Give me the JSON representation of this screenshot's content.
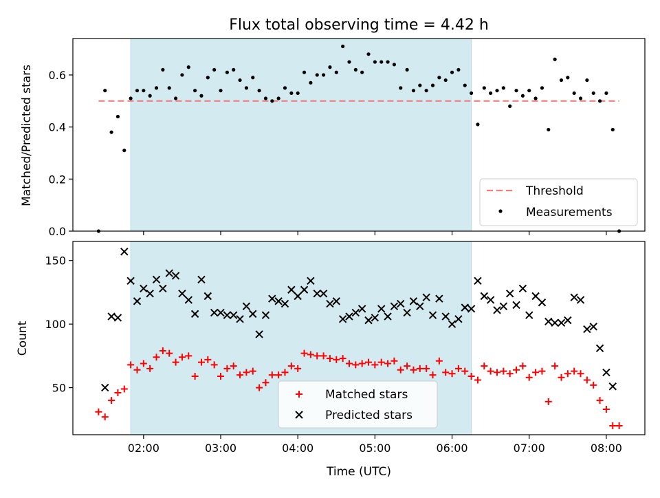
{
  "chart_data": [
    {
      "type": "scatter",
      "title": "Flux total observing time = 4.42 h",
      "xlabel": "",
      "ylabel": "Matched/Predicted stars",
      "ylim": [
        0,
        0.74
      ],
      "yticks": [
        "0.0",
        "0.2",
        "0.4",
        "0.6"
      ],
      "ytick_values": [
        0,
        0.2,
        0.4,
        0.6
      ],
      "xlim": [
        "01:05",
        "08:30"
      ],
      "highlight_span": {
        "start": "01:50",
        "end": "06:15",
        "color": "#d3eaf0"
      },
      "threshold": {
        "name": "Threshold",
        "value": 0.5,
        "x_range": [
          "01:25",
          "08:10"
        ],
        "color": "#f08080"
      },
      "legend": {
        "position": "lower-right",
        "entries": [
          "Threshold",
          "Measurements"
        ]
      },
      "series": [
        {
          "name": "Measurements",
          "marker": "dot",
          "color": "#000000",
          "points": [
            [
              "01:25",
              0.0
            ],
            [
              "01:30",
              0.54
            ],
            [
              "01:35",
              0.38
            ],
            [
              "01:40",
              0.44
            ],
            [
              "01:45",
              0.31
            ],
            [
              "01:50",
              0.51
            ],
            [
              "01:55",
              0.54
            ],
            [
              "02:00",
              0.54
            ],
            [
              "02:05",
              0.52
            ],
            [
              "02:10",
              0.55
            ],
            [
              "02:15",
              0.62
            ],
            [
              "02:20",
              0.55
            ],
            [
              "02:25",
              0.51
            ],
            [
              "02:30",
              0.6
            ],
            [
              "02:35",
              0.63
            ],
            [
              "02:40",
              0.54
            ],
            [
              "02:45",
              0.52
            ],
            [
              "02:50",
              0.59
            ],
            [
              "02:55",
              0.62
            ],
            [
              "03:00",
              0.54
            ],
            [
              "03:05",
              0.61
            ],
            [
              "03:10",
              0.62
            ],
            [
              "03:15",
              0.58
            ],
            [
              "03:20",
              0.55
            ],
            [
              "03:25",
              0.59
            ],
            [
              "03:30",
              0.54
            ],
            [
              "03:35",
              0.51
            ],
            [
              "03:40",
              0.5
            ],
            [
              "03:45",
              0.51
            ],
            [
              "03:50",
              0.55
            ],
            [
              "03:55",
              0.53
            ],
            [
              "04:00",
              0.53
            ],
            [
              "04:05",
              0.61
            ],
            [
              "04:10",
              0.57
            ],
            [
              "04:15",
              0.6
            ],
            [
              "04:20",
              0.6
            ],
            [
              "04:25",
              0.63
            ],
            [
              "04:30",
              0.61
            ],
            [
              "04:35",
              0.71
            ],
            [
              "04:40",
              0.65
            ],
            [
              "04:45",
              0.62
            ],
            [
              "04:50",
              0.61
            ],
            [
              "04:55",
              0.68
            ],
            [
              "05:00",
              0.65
            ],
            [
              "05:05",
              0.65
            ],
            [
              "05:10",
              0.65
            ],
            [
              "05:15",
              0.64
            ],
            [
              "05:20",
              0.55
            ],
            [
              "05:25",
              0.62
            ],
            [
              "05:30",
              0.54
            ],
            [
              "05:35",
              0.56
            ],
            [
              "05:40",
              0.54
            ],
            [
              "05:45",
              0.56
            ],
            [
              "05:50",
              0.59
            ],
            [
              "05:55",
              0.58
            ],
            [
              "06:00",
              0.61
            ],
            [
              "06:05",
              0.62
            ],
            [
              "06:10",
              0.56
            ],
            [
              "06:15",
              0.53
            ],
            [
              "06:20",
              0.41
            ],
            [
              "06:25",
              0.55
            ],
            [
              "06:30",
              0.53
            ],
            [
              "06:35",
              0.54
            ],
            [
              "06:40",
              0.55
            ],
            [
              "06:45",
              0.48
            ],
            [
              "06:50",
              0.54
            ],
            [
              "06:55",
              0.52
            ],
            [
              "07:00",
              0.54
            ],
            [
              "07:05",
              0.51
            ],
            [
              "07:10",
              0.55
            ],
            [
              "07:15",
              0.39
            ],
            [
              "07:20",
              0.66
            ],
            [
              "07:25",
              0.58
            ],
            [
              "07:30",
              0.59
            ],
            [
              "07:35",
              0.53
            ],
            [
              "07:40",
              0.51
            ],
            [
              "07:45",
              0.58
            ],
            [
              "07:50",
              0.53
            ],
            [
              "07:55",
              0.5
            ],
            [
              "08:00",
              0.53
            ],
            [
              "08:05",
              0.39
            ],
            [
              "08:10",
              0.0
            ]
          ]
        }
      ]
    },
    {
      "type": "scatter",
      "title": "",
      "xlabel": "Time (UTC)",
      "ylabel": "Count",
      "ylim": [
        13,
        165
      ],
      "yticks": [
        "50",
        "100",
        "150"
      ],
      "ytick_values": [
        50,
        100,
        150
      ],
      "xlim": [
        "01:05",
        "08:30"
      ],
      "xticks": [
        "02:00",
        "03:00",
        "04:00",
        "05:00",
        "06:00",
        "07:00",
        "08:00"
      ],
      "highlight_span": {
        "start": "01:50",
        "end": "06:15",
        "color": "#d3eaf0"
      },
      "legend": {
        "position": "lower-center",
        "entries": [
          "Matched stars",
          "Predicted stars"
        ]
      },
      "series": [
        {
          "name": "Matched stars",
          "marker": "plus",
          "color": "#ff0000",
          "points": [
            [
              "01:25",
              31
            ],
            [
              "01:30",
              27
            ],
            [
              "01:35",
              40
            ],
            [
              "01:40",
              46
            ],
            [
              "01:45",
              49
            ],
            [
              "01:50",
              68
            ],
            [
              "01:55",
              64
            ],
            [
              "02:00",
              69
            ],
            [
              "02:05",
              65
            ],
            [
              "02:10",
              74
            ],
            [
              "02:15",
              79
            ],
            [
              "02:20",
              77
            ],
            [
              "02:25",
              70
            ],
            [
              "02:30",
              74
            ],
            [
              "02:35",
              75
            ],
            [
              "02:40",
              59
            ],
            [
              "02:45",
              70
            ],
            [
              "02:50",
              72
            ],
            [
              "02:55",
              68
            ],
            [
              "03:00",
              59
            ],
            [
              "03:05",
              65
            ],
            [
              "03:10",
              67
            ],
            [
              "03:15",
              60
            ],
            [
              "03:20",
              62
            ],
            [
              "03:25",
              63
            ],
            [
              "03:30",
              50
            ],
            [
              "03:35",
              54
            ],
            [
              "03:40",
              60
            ],
            [
              "03:45",
              60
            ],
            [
              "03:50",
              62
            ],
            [
              "03:55",
              67
            ],
            [
              "04:00",
              65
            ],
            [
              "04:05",
              77
            ],
            [
              "04:10",
              76
            ],
            [
              "04:15",
              75
            ],
            [
              "04:20",
              75
            ],
            [
              "04:25",
              73
            ],
            [
              "04:30",
              72
            ],
            [
              "04:35",
              73
            ],
            [
              "04:40",
              69
            ],
            [
              "04:45",
              68
            ],
            [
              "04:50",
              69
            ],
            [
              "04:55",
              70
            ],
            [
              "05:00",
              68
            ],
            [
              "05:05",
              70
            ],
            [
              "05:10",
              69
            ],
            [
              "05:15",
              71
            ],
            [
              "05:20",
              64
            ],
            [
              "05:25",
              67
            ],
            [
              "05:30",
              64
            ],
            [
              "05:35",
              65
            ],
            [
              "05:40",
              65
            ],
            [
              "05:45",
              60
            ],
            [
              "05:50",
              71
            ],
            [
              "05:55",
              62
            ],
            [
              "06:00",
              61
            ],
            [
              "06:05",
              65
            ],
            [
              "06:10",
              63
            ],
            [
              "06:15",
              59
            ],
            [
              "06:20",
              56
            ],
            [
              "06:25",
              67
            ],
            [
              "06:30",
              63
            ],
            [
              "06:35",
              62
            ],
            [
              "06:40",
              63
            ],
            [
              "06:45",
              61
            ],
            [
              "06:50",
              64
            ],
            [
              "06:55",
              67
            ],
            [
              "07:00",
              58
            ],
            [
              "07:05",
              62
            ],
            [
              "07:10",
              63
            ],
            [
              "07:15",
              39
            ],
            [
              "07:20",
              67
            ],
            [
              "07:25",
              58
            ],
            [
              "07:30",
              61
            ],
            [
              "07:35",
              63
            ],
            [
              "07:40",
              61
            ],
            [
              "07:45",
              56
            ],
            [
              "07:50",
              52
            ],
            [
              "07:55",
              40
            ],
            [
              "08:00",
              33
            ],
            [
              "08:05",
              20
            ],
            [
              "08:10",
              20
            ]
          ]
        },
        {
          "name": "Predicted stars",
          "marker": "x",
          "color": "#000000",
          "points": [
            [
              "01:30",
              50
            ],
            [
              "01:35",
              106
            ],
            [
              "01:40",
              105
            ],
            [
              "01:45",
              157
            ],
            [
              "01:50",
              134
            ],
            [
              "01:55",
              118
            ],
            [
              "02:00",
              128
            ],
            [
              "02:05",
              124
            ],
            [
              "02:10",
              135
            ],
            [
              "02:15",
              128
            ],
            [
              "02:20",
              140
            ],
            [
              "02:25",
              138
            ],
            [
              "02:30",
              124
            ],
            [
              "02:35",
              119
            ],
            [
              "02:40",
              108
            ],
            [
              "02:45",
              135
            ],
            [
              "02:50",
              122
            ],
            [
              "02:55",
              109
            ],
            [
              "03:00",
              109
            ],
            [
              "03:05",
              107
            ],
            [
              "03:10",
              107
            ],
            [
              "03:15",
              104
            ],
            [
              "03:20",
              114
            ],
            [
              "03:25",
              108
            ],
            [
              "03:30",
              92
            ],
            [
              "03:35",
              107
            ],
            [
              "03:40",
              120
            ],
            [
              "03:45",
              118
            ],
            [
              "03:50",
              116
            ],
            [
              "03:55",
              127
            ],
            [
              "04:00",
              122
            ],
            [
              "04:05",
              127
            ],
            [
              "04:10",
              134
            ],
            [
              "04:15",
              124
            ],
            [
              "04:20",
              124
            ],
            [
              "04:25",
              116
            ],
            [
              "04:30",
              118
            ],
            [
              "04:35",
              104
            ],
            [
              "04:40",
              106
            ],
            [
              "04:45",
              109
            ],
            [
              "04:50",
              112
            ],
            [
              "04:55",
              103
            ],
            [
              "05:00",
              105
            ],
            [
              "05:05",
              112
            ],
            [
              "05:10",
              106
            ],
            [
              "05:15",
              114
            ],
            [
              "05:20",
              116
            ],
            [
              "05:25",
              109
            ],
            [
              "05:30",
              118
            ],
            [
              "05:35",
              114
            ],
            [
              "05:40",
              121
            ],
            [
              "05:45",
              107
            ],
            [
              "05:50",
              120
            ],
            [
              "05:55",
              106
            ],
            [
              "06:00",
              100
            ],
            [
              "06:05",
              104
            ],
            [
              "06:10",
              113
            ],
            [
              "06:15",
              112
            ],
            [
              "06:20",
              134
            ],
            [
              "06:25",
              122
            ],
            [
              "06:30",
              119
            ],
            [
              "06:35",
              111
            ],
            [
              "06:40",
              114
            ],
            [
              "06:45",
              124
            ],
            [
              "06:50",
              115
            ],
            [
              "06:55",
              128
            ],
            [
              "07:00",
              107
            ],
            [
              "07:05",
              122
            ],
            [
              "07:10",
              117
            ],
            [
              "07:15",
              102
            ],
            [
              "07:20",
              101
            ],
            [
              "07:25",
              101
            ],
            [
              "07:30",
              103
            ],
            [
              "07:35",
              121
            ],
            [
              "07:40",
              119
            ],
            [
              "07:45",
              96
            ],
            [
              "07:50",
              98
            ],
            [
              "07:55",
              81
            ],
            [
              "08:00",
              62
            ],
            [
              "08:05",
              51
            ]
          ]
        }
      ]
    }
  ]
}
